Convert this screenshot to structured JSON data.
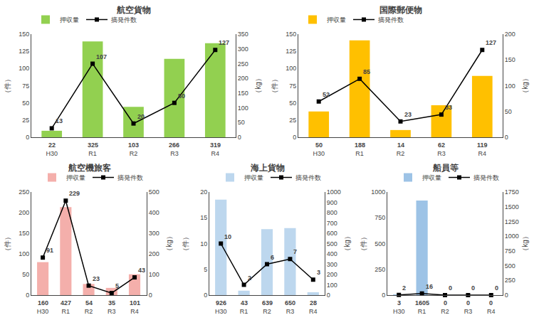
{
  "chart_data": [
    {
      "type": "bar",
      "title": "航空貨物",
      "categories": [
        "H30",
        "R1",
        "R2",
        "R3",
        "R4"
      ],
      "series": [
        {
          "name": "押収量",
          "type": "bar",
          "color": "#92D050",
          "axis": "y2",
          "values": [
            22,
            325,
            103,
            266,
            319
          ]
        },
        {
          "name": "摘発件数",
          "type": "line",
          "color": "#000000",
          "marker": "square",
          "values": [
            13,
            107,
            20,
            50,
            127
          ]
        }
      ],
      "ylabel": "（件）",
      "y2label": "（kg）",
      "ylim": [
        0,
        150
      ],
      "yticks": [
        0,
        25,
        50,
        75,
        100,
        125,
        150
      ],
      "y2lim": [
        0,
        350
      ],
      "y2ticks": [
        0,
        50,
        100,
        150,
        200,
        250,
        300,
        350
      ],
      "legend": "upper left",
      "grid": false,
      "data_labels": true
    },
    {
      "type": "bar",
      "title": "国際郵便物",
      "categories": [
        "H30",
        "R1",
        "R2",
        "R3",
        "R4"
      ],
      "series": [
        {
          "name": "押収量",
          "type": "bar",
          "color": "#FFC000",
          "axis": "y2",
          "values": [
            50,
            188,
            14,
            62,
            119
          ]
        },
        {
          "name": "摘発件数",
          "type": "line",
          "color": "#000000",
          "marker": "square",
          "values": [
            52,
            85,
            23,
            33,
            127
          ]
        }
      ],
      "ylabel": "（件）",
      "y2label": "（kg）",
      "ylim": [
        0,
        150
      ],
      "yticks": [
        0,
        25,
        50,
        75,
        100,
        125,
        150
      ],
      "y2lim": [
        0,
        200
      ],
      "y2ticks": [
        0,
        50,
        100,
        150,
        200
      ],
      "legend": "upper left",
      "grid": false,
      "data_labels": true
    },
    {
      "type": "bar",
      "title": "航空機旅客",
      "categories": [
        "H30",
        "R1",
        "R2",
        "R3",
        "R4"
      ],
      "series": [
        {
          "name": "押収量",
          "type": "bar",
          "color": "#F4AFAB",
          "axis": "y2",
          "values": [
            160,
            427,
            54,
            35,
            101
          ]
        },
        {
          "name": "摘発件数",
          "type": "line",
          "color": "#000000",
          "marker": "square",
          "values": [
            91,
            229,
            23,
            5,
            43
          ]
        }
      ],
      "ylabel": "（件）",
      "y2label": "（kg）",
      "ylim": [
        0,
        250
      ],
      "yticks": [
        0,
        50,
        100,
        150,
        200,
        250
      ],
      "y2lim": [
        0,
        500
      ],
      "y2ticks": [
        0,
        100,
        200,
        300,
        400,
        500
      ],
      "legend": "upper right",
      "grid": false,
      "data_labels": true
    },
    {
      "type": "bar",
      "title": "海上貨物",
      "categories": [
        "H30",
        "R1",
        "R2",
        "R3",
        "R4"
      ],
      "series": [
        {
          "name": "押収量",
          "type": "bar",
          "color": "#BDD7EE",
          "axis": "y2",
          "values": [
            926,
            43,
            639,
            650,
            28
          ]
        },
        {
          "name": "摘発件数",
          "type": "line",
          "color": "#000000",
          "marker": "square",
          "values": [
            10,
            2,
            6,
            7,
            3
          ]
        }
      ],
      "ylabel": "（件）",
      "y2label": "（kg）",
      "ylim": [
        0,
        20
      ],
      "yticks": [
        0,
        5,
        10,
        15,
        20
      ],
      "y2lim": [
        0,
        1000
      ],
      "y2ticks": [
        0,
        100,
        200,
        300,
        400,
        500,
        600,
        700,
        800,
        900,
        1000
      ],
      "legend": "upper right",
      "grid": false,
      "data_labels": true
    },
    {
      "type": "bar",
      "title": "船員等",
      "categories": [
        "H30",
        "R1",
        "R2",
        "R3",
        "R4"
      ],
      "series": [
        {
          "name": "押収量",
          "type": "bar",
          "color": "#9DC3E6",
          "axis": "y2",
          "values": [
            3,
            1605,
            0,
            0,
            0
          ]
        },
        {
          "name": "摘発件数",
          "type": "line",
          "color": "#000000",
          "marker": "square",
          "values": [
            2,
            16,
            0,
            0,
            0
          ]
        }
      ],
      "ylabel": "（件）",
      "y2label": "（kg）",
      "ylim": [
        0,
        1000
      ],
      "yticks": [
        0,
        250,
        500,
        750,
        1000
      ],
      "y2lim": [
        0,
        1750
      ],
      "y2ticks": [
        0,
        250,
        500,
        750,
        1000,
        1250,
        1500,
        1750
      ],
      "legend": "upper right",
      "grid": false,
      "data_labels": true
    }
  ]
}
